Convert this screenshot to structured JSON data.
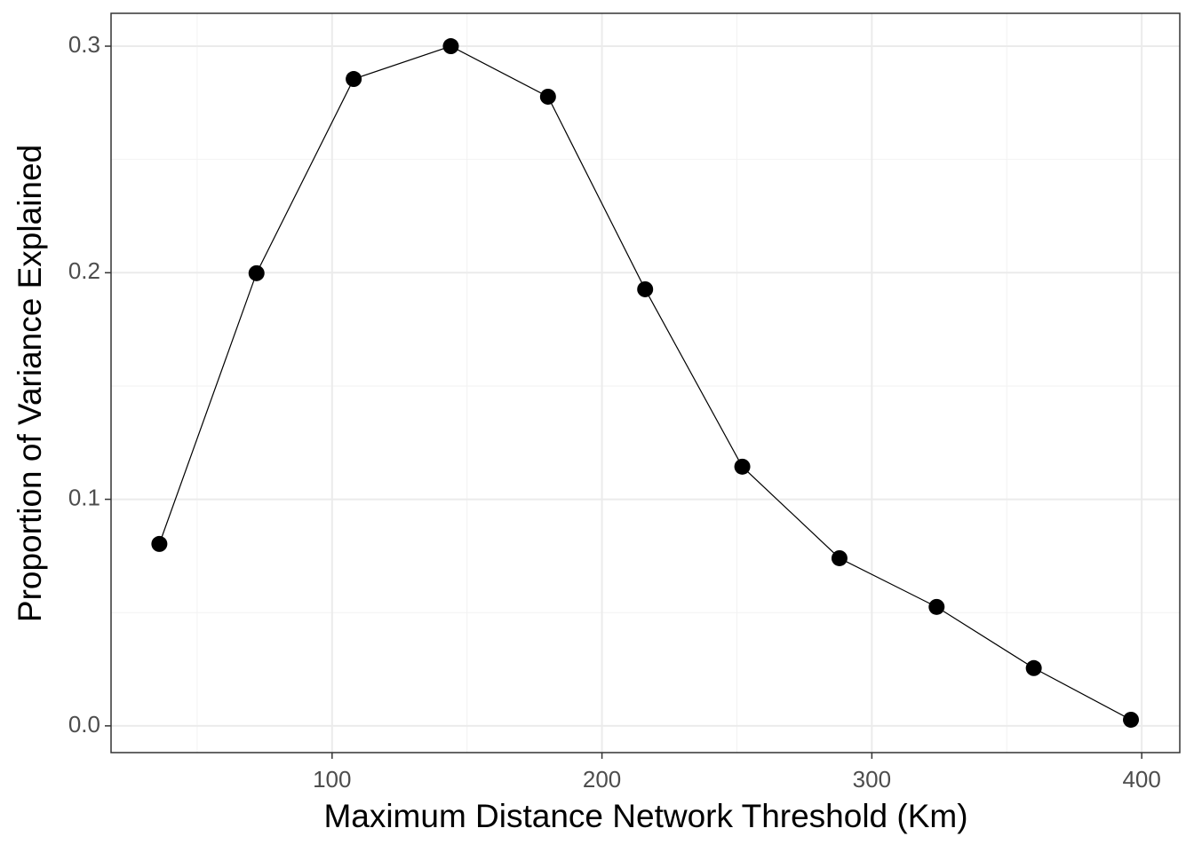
{
  "chart_data": {
    "type": "line",
    "x_label": "Maximum Distance Network Threshold (Km)",
    "y_label": "Proportion of Variance Explained",
    "x": [
      36,
      72,
      108,
      144,
      180,
      216,
      252,
      288,
      324,
      360,
      396
    ],
    "series": [
      {
        "color": "#000000",
        "values": [
          0.0803,
          0.1998,
          0.2855,
          0.3,
          0.2777,
          0.1927,
          0.1144,
          0.074,
          0.0525,
          0.0255,
          0.0027
        ]
      }
    ],
    "xlim": [
      18.1,
      414.1
    ],
    "xticks": [
      100,
      200,
      300,
      400
    ],
    "x_minor_ticks": [
      50,
      150,
      250,
      350
    ],
    "ylim": [
      -0.0118,
      0.3145
    ],
    "yticks": [
      {
        "value": 0,
        "label": "0.0"
      },
      0.1,
      0.2,
      0.3
    ],
    "y_minor_ticks": [
      0.05,
      0.15,
      0.25
    ],
    "grid": true,
    "markers": true
  }
}
